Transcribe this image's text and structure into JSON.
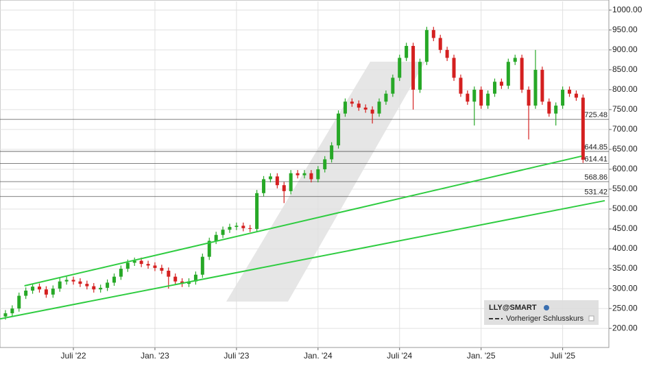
{
  "chart_data": {
    "type": "candlestick",
    "series_name": "LLY@SMART",
    "reference_line_name": "Vorheriger Schlusskurs",
    "up_color": "#27a827",
    "down_color": "#d42020",
    "trend_color": "#2ecc40",
    "grid": true,
    "xlim": [
      0.6,
      45.4
    ],
    "ylim": [
      152,
      1022
    ],
    "xticks": [
      {
        "value": 6,
        "label": "Juli '22"
      },
      {
        "value": 12,
        "label": "Jan. '23"
      },
      {
        "value": 18,
        "label": "Juli '23"
      },
      {
        "value": 24,
        "label": "Jan. '24"
      },
      {
        "value": 30,
        "label": "Juli '24"
      },
      {
        "value": 36,
        "label": "Jan. '25"
      },
      {
        "value": 42,
        "label": "Juli '25"
      }
    ],
    "yticks": [
      {
        "value": 200,
        "label": "200.00"
      },
      {
        "value": 250,
        "label": "250.00"
      },
      {
        "value": 300,
        "label": "300.00"
      },
      {
        "value": 350,
        "label": "350.00"
      },
      {
        "value": 400,
        "label": "400.00"
      },
      {
        "value": 450,
        "label": "450.00"
      },
      {
        "value": 500,
        "label": "500.00"
      },
      {
        "value": 550,
        "label": "550.00"
      },
      {
        "value": 600,
        "label": "600.00"
      },
      {
        "value": 650,
        "label": "650.00"
      },
      {
        "value": 700,
        "label": "700.00"
      },
      {
        "value": 750,
        "label": "750.00"
      },
      {
        "value": 800,
        "label": "800.00"
      },
      {
        "value": 850,
        "label": "850.00"
      },
      {
        "value": 900,
        "label": "900.00"
      },
      {
        "value": 950,
        "label": "950.00"
      },
      {
        "value": 1000,
        "label": "1000.00"
      }
    ],
    "levels": [
      725.48,
      644.85,
      614.41,
      568.86,
      531.42
    ],
    "trendlines": [
      {
        "x": [
          2.4,
          43.4
        ],
        "y": [
          307,
          633
        ]
      },
      {
        "x": [
          0.6,
          45.1
        ],
        "y": [
          224,
          521
        ]
      }
    ],
    "x": [
      1,
      1.5,
      2,
      2.5,
      3,
      3.5,
      4,
      4.5,
      5,
      5.5,
      6,
      6.5,
      7,
      7.5,
      8,
      8.5,
      9,
      9.5,
      10,
      10.5,
      11,
      11.5,
      12,
      12.5,
      13,
      13.5,
      14,
      14.5,
      15,
      15.5,
      16,
      16.5,
      17,
      17.5,
      18,
      18.5,
      19,
      19.5,
      20,
      20.5,
      21,
      21.5,
      22,
      22.5,
      23,
      23.5,
      24,
      24.5,
      25,
      25.5,
      26,
      26.5,
      27,
      27.5,
      28,
      28.5,
      29,
      29.5,
      30,
      30.5,
      31,
      31.5,
      32,
      32.5,
      33,
      33.5,
      34,
      34.5,
      35,
      35.5,
      36,
      36.5,
      37,
      37.5,
      38,
      38.5,
      39,
      39.5,
      40,
      40.5,
      41,
      41.5,
      42,
      42.5,
      43,
      43.5
    ],
    "open": [
      230,
      238,
      250,
      282,
      295,
      305,
      298,
      285,
      300,
      318,
      322,
      318,
      312,
      306,
      298,
      302,
      315,
      330,
      350,
      365,
      370,
      362,
      358,
      352,
      345,
      330,
      318,
      312,
      318,
      335,
      380,
      420,
      435,
      448,
      455,
      458,
      452,
      450,
      540,
      575,
      582,
      560,
      545,
      590,
      585,
      590,
      575,
      600,
      625,
      660,
      740,
      770,
      765,
      755,
      750,
      740,
      770,
      790,
      830,
      880,
      910,
      800,
      870,
      950,
      930,
      900,
      880,
      830,
      790,
      770,
      800,
      760,
      790,
      820,
      810,
      870,
      880,
      800,
      760,
      850,
      770,
      740,
      760,
      800,
      790,
      780
    ],
    "high": [
      246,
      258,
      290,
      303,
      313,
      313,
      306,
      308,
      326,
      330,
      330,
      326,
      320,
      314,
      310,
      323,
      338,
      358,
      373,
      378,
      378,
      370,
      366,
      360,
      353,
      338,
      326,
      326,
      343,
      388,
      428,
      443,
      456,
      463,
      466,
      466,
      460,
      548,
      583,
      590,
      590,
      568,
      598,
      598,
      598,
      598,
      608,
      633,
      668,
      748,
      778,
      778,
      773,
      763,
      758,
      778,
      798,
      838,
      888,
      918,
      918,
      878,
      958,
      958,
      938,
      908,
      888,
      838,
      798,
      808,
      808,
      798,
      828,
      828,
      878,
      888,
      888,
      808,
      900,
      858,
      778,
      768,
      808,
      808,
      798,
      788
    ],
    "low": [
      222,
      230,
      242,
      274,
      287,
      290,
      277,
      277,
      292,
      310,
      310,
      304,
      298,
      290,
      290,
      294,
      307,
      322,
      342,
      357,
      354,
      350,
      344,
      337,
      300,
      310,
      304,
      304,
      310,
      327,
      372,
      412,
      427,
      440,
      447,
      444,
      442,
      442,
      532,
      567,
      552,
      515,
      537,
      577,
      577,
      567,
      567,
      592,
      617,
      652,
      732,
      757,
      747,
      742,
      715,
      732,
      762,
      782,
      822,
      872,
      750,
      792,
      862,
      922,
      892,
      872,
      822,
      782,
      762,
      710,
      752,
      752,
      782,
      802,
      802,
      862,
      792,
      675,
      752,
      762,
      732,
      710,
      752,
      782,
      772,
      616
    ],
    "close": [
      238,
      250,
      282,
      295,
      305,
      298,
      285,
      300,
      318,
      322,
      318,
      312,
      306,
      298,
      302,
      315,
      330,
      350,
      365,
      370,
      362,
      358,
      352,
      345,
      330,
      318,
      312,
      318,
      335,
      380,
      420,
      435,
      448,
      455,
      458,
      452,
      450,
      540,
      575,
      582,
      560,
      545,
      590,
      585,
      590,
      575,
      600,
      625,
      660,
      740,
      770,
      765,
      755,
      750,
      740,
      770,
      790,
      830,
      880,
      910,
      800,
      870,
      950,
      930,
      900,
      880,
      830,
      790,
      770,
      800,
      760,
      790,
      820,
      810,
      870,
      880,
      800,
      760,
      850,
      770,
      740,
      760,
      800,
      790,
      780,
      624
    ]
  }
}
